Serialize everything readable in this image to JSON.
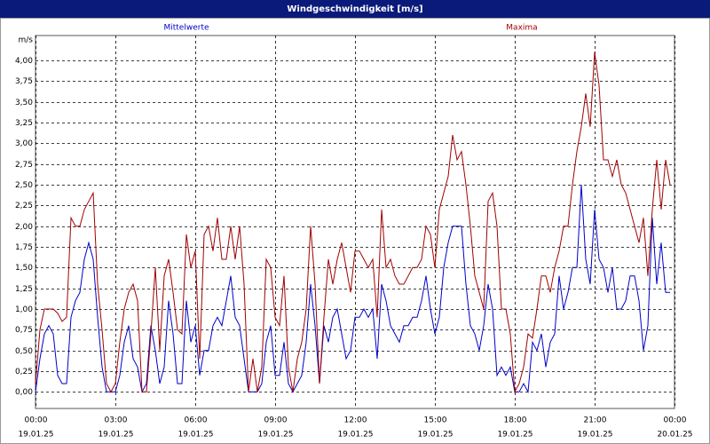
{
  "chart_data": {
    "type": "line",
    "title": "Windgeschwindigkeit [m/s]",
    "y_label": "m/s",
    "x": [
      0,
      10,
      20,
      30,
      40,
      50,
      60,
      70,
      80,
      90,
      100,
      110,
      120,
      130,
      140,
      150,
      160,
      170,
      180,
      190,
      200,
      210,
      220,
      230,
      240,
      250,
      260,
      270,
      280,
      290,
      300,
      310,
      320,
      330,
      340,
      350,
      360,
      370,
      380,
      390,
      400,
      410,
      420,
      430,
      440,
      450,
      460,
      470,
      480,
      490,
      500,
      510,
      520,
      530,
      540,
      550,
      560,
      570,
      580,
      590,
      600,
      610,
      620,
      630,
      640,
      650,
      660,
      670,
      680,
      690,
      700,
      710,
      720,
      730,
      740,
      750,
      760,
      770,
      780,
      790,
      800,
      810,
      820,
      830,
      840,
      850,
      860,
      870,
      880,
      890,
      900,
      910,
      920,
      930,
      940,
      950,
      960,
      970,
      980,
      990,
      1000,
      1010,
      1020,
      1030,
      1040,
      1050,
      1060,
      1070,
      1080,
      1090,
      1100,
      1110,
      1120,
      1130,
      1140,
      1150,
      1160,
      1170,
      1180,
      1190,
      1200,
      1210,
      1220,
      1230,
      1240,
      1250,
      1260,
      1270,
      1280,
      1290,
      1300,
      1310,
      1320,
      1330,
      1340,
      1350,
      1360,
      1370,
      1380,
      1390,
      1400,
      1410,
      1420,
      1430
    ],
    "series": [
      {
        "name": "Mittelwerte",
        "color": "#0000c8",
        "values": [
          0,
          0.4,
          0.7,
          0.8,
          0.7,
          0.2,
          0.1,
          0.1,
          0.9,
          1.1,
          1.2,
          1.6,
          1.8,
          1.6,
          0.9,
          0.3,
          0,
          0,
          0,
          0.2,
          0.6,
          0.8,
          0.4,
          0.3,
          0,
          0.1,
          0.8,
          0.5,
          0.1,
          0.3,
          1.1,
          0.7,
          0.1,
          0.1,
          1.1,
          0.6,
          0.8,
          0.2,
          0.5,
          0.5,
          0.8,
          0.9,
          0.8,
          1.1,
          1.4,
          0.9,
          0.8,
          0.4,
          0,
          0,
          0,
          0.1,
          0.6,
          0.8,
          0.2,
          0.2,
          0.6,
          0.1,
          0,
          0.1,
          0.2,
          0.6,
          1.3,
          0.8,
          0.1,
          0.8,
          0.6,
          0.9,
          1.0,
          0.7,
          0.4,
          0.5,
          0.9,
          0.9,
          1.0,
          0.9,
          1.0,
          0.4,
          1.3,
          1.1,
          0.8,
          0.7,
          0.6,
          0.8,
          0.8,
          0.9,
          0.9,
          1.1,
          1.4,
          1.0,
          0.7,
          0.9,
          1.5,
          1.8,
          2.0,
          2.0,
          2.0,
          1.3,
          0.8,
          0.7,
          0.5,
          0.8,
          1.3,
          1.0,
          0.2,
          0.3,
          0.2,
          0.3,
          0,
          0,
          0.1,
          0,
          0.6,
          0.5,
          0.7,
          0.3,
          0.6,
          0.7,
          1.4,
          1.0,
          1.2,
          1.5,
          1.5,
          2.5,
          1.6,
          1.3,
          2.2,
          1.6,
          1.5,
          1.2,
          1.5,
          1.0,
          1.0,
          1.1,
          1.4,
          1.4,
          1.1,
          0.5,
          0.8,
          2.1,
          1.3,
          1.8,
          1.2,
          1.2
        ]
      },
      {
        "name": "Maxima",
        "color": "#a00000",
        "values": [
          0.1,
          0.75,
          1.0,
          1.0,
          1.0,
          0.95,
          0.85,
          0.9,
          2.1,
          2.0,
          2.0,
          2.2,
          2.3,
          2.4,
          1.3,
          0.75,
          0.1,
          0,
          0.1,
          0.6,
          1.0,
          1.2,
          1.3,
          1.1,
          0,
          0,
          0.7,
          1.5,
          0.5,
          1.4,
          1.6,
          1.2,
          0.75,
          0.7,
          1.9,
          1.5,
          1.7,
          0.4,
          1.9,
          2.0,
          1.7,
          2.1,
          1.6,
          1.6,
          2.0,
          1.6,
          2.0,
          1.3,
          0,
          0.4,
          0,
          0.3,
          1.6,
          1.5,
          0.9,
          0.8,
          1.4,
          0.3,
          0,
          0.4,
          0.6,
          1.0,
          2.0,
          1.3,
          0.1,
          0.9,
          1.6,
          1.3,
          1.6,
          1.8,
          1.5,
          1.2,
          1.7,
          1.7,
          1.6,
          1.5,
          1.6,
          0.9,
          2.2,
          1.5,
          1.6,
          1.4,
          1.3,
          1.3,
          1.4,
          1.5,
          1.5,
          1.6,
          2.0,
          1.9,
          1.5,
          2.2,
          2.4,
          2.6,
          3.1,
          2.8,
          2.9,
          2.5,
          2.0,
          1.4,
          1.2,
          1.0,
          2.3,
          2.4,
          2.0,
          1.0,
          1.0,
          0.7,
          0,
          0.1,
          0.3,
          0.7,
          0.65,
          1.0,
          1.4,
          1.4,
          1.2,
          1.5,
          1.7,
          2.0,
          2.0,
          2.5,
          2.9,
          3.2,
          3.6,
          3.2,
          4.1,
          3.7,
          2.8,
          2.8,
          2.6,
          2.8,
          2.5,
          2.4,
          2.2,
          2.0,
          1.8,
          2.1,
          1.4,
          2.2,
          2.8,
          2.2,
          2.8,
          2.5
        ]
      }
    ],
    "xlim": [
      0,
      1440
    ],
    "xticks": [
      {
        "value": 0,
        "label": "00:00",
        "date": "19.01.25"
      },
      {
        "value": 180,
        "label": "03:00",
        "date": "19.01.25"
      },
      {
        "value": 360,
        "label": "06:00",
        "date": "19.01.25"
      },
      {
        "value": 540,
        "label": "09:00",
        "date": "19.01.25"
      },
      {
        "value": 720,
        "label": "12:00",
        "date": "19.01.25"
      },
      {
        "value": 900,
        "label": "15:00",
        "date": "19.01.25"
      },
      {
        "value": 1080,
        "label": "18:00",
        "date": "19.01.25"
      },
      {
        "value": 1260,
        "label": "21:00",
        "date": "19.01.25"
      },
      {
        "value": 1440,
        "label": "00:00",
        "date": "20.01.25"
      }
    ],
    "ylim": [
      -0.2,
      4.3
    ],
    "yticks": [
      {
        "value": 0,
        "label": "0,00"
      },
      {
        "value": 0.25,
        "label": "0,25"
      },
      {
        "value": 0.5,
        "label": "0,50"
      },
      {
        "value": 0.75,
        "label": "0,75"
      },
      {
        "value": 1,
        "label": "1,00"
      },
      {
        "value": 1.25,
        "label": "1,25"
      },
      {
        "value": 1.5,
        "label": "1,50"
      },
      {
        "value": 1.75,
        "label": "1,75"
      },
      {
        "value": 2,
        "label": "2,00"
      },
      {
        "value": 2.25,
        "label": "2,25"
      },
      {
        "value": 2.5,
        "label": "2,50"
      },
      {
        "value": 2.75,
        "label": "2,75"
      },
      {
        "value": 3,
        "label": "3,00"
      },
      {
        "value": 3.25,
        "label": "3,25"
      },
      {
        "value": 3.5,
        "label": "3,50"
      },
      {
        "value": 3.75,
        "label": "3,75"
      },
      {
        "value": 4,
        "label": "4,00"
      }
    ],
    "grid": true
  }
}
